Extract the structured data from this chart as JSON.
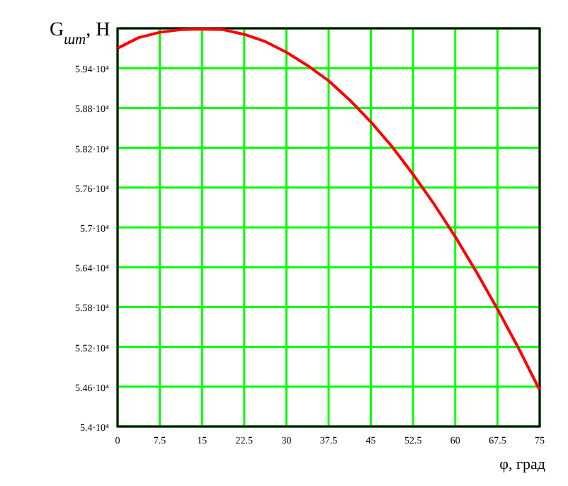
{
  "chart_data": {
    "type": "line",
    "ylabel": "G$_{шт}$, Н",
    "xlabel": "φ, град",
    "x": [
      0,
      3.75,
      7.5,
      11.25,
      15,
      18.75,
      22.5,
      26.25,
      30,
      33.75,
      37.5,
      41.25,
      45,
      48.75,
      52.5,
      56.25,
      60,
      63.75,
      67.5,
      71.25,
      75
    ],
    "series": [
      {
        "color": "#ff0000",
        "values": [
          59700,
          59860,
          59940,
          59980,
          59990,
          59980,
          59910,
          59800,
          59640,
          59440,
          59210,
          58920,
          58590,
          58220,
          57800,
          57350,
          56860,
          56330,
          55770,
          55180,
          54550
        ]
      }
    ],
    "xlim": [
      0,
      75
    ],
    "xticks": [
      0,
      7.5,
      15,
      22.5,
      30,
      37.5,
      45,
      52.5,
      60,
      67.5,
      75
    ],
    "ylim": [
      54000,
      60000
    ],
    "yticks": [
      {
        "value": 54000,
        "label": "5.4·10⁴"
      },
      {
        "value": 54600,
        "label": "5.46·10⁴"
      },
      {
        "value": 55200,
        "label": "5.52·10⁴"
      },
      {
        "value": 55800,
        "label": "5.58·10⁴"
      },
      {
        "value": 56400,
        "label": "5.64·10⁴"
      },
      {
        "value": 57000,
        "label": "5.7·10⁴"
      },
      {
        "value": 57600,
        "label": "5.76·10⁴"
      },
      {
        "value": 58200,
        "label": "5.82·10⁴"
      },
      {
        "value": 58800,
        "label": "5.88·10⁴"
      },
      {
        "value": 59400,
        "label": "5.94·10⁴"
      },
      {
        "value": 60000,
        "label": null
      }
    ],
    "grid": true,
    "marker": "none",
    "line_style": "solid"
  }
}
